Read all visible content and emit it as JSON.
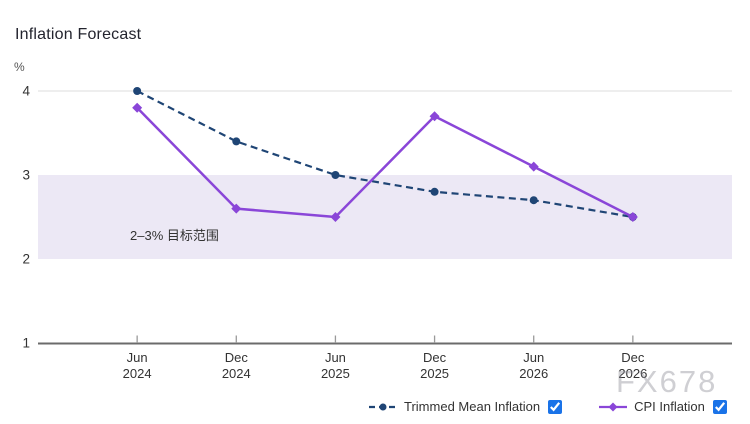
{
  "watermark": "FX678",
  "chart_data": {
    "type": "line",
    "title": "Inflation Forecast",
    "ylabel": "%",
    "xlabel": "",
    "ylim": [
      1,
      4.35
    ],
    "y_ticks": [
      4,
      3,
      2,
      1
    ],
    "categories": [
      {
        "month": "Jun",
        "year": "2024"
      },
      {
        "month": "Dec",
        "year": "2024"
      },
      {
        "month": "Jun",
        "year": "2025"
      },
      {
        "month": "Dec",
        "year": "2025"
      },
      {
        "month": "Jun",
        "year": "2026"
      },
      {
        "month": "Dec",
        "year": "2026"
      }
    ],
    "series": [
      {
        "name": "Trimmed Mean Inflation",
        "values": [
          4.0,
          3.4,
          3.0,
          2.8,
          2.7,
          2.5
        ],
        "color": "#1f4575",
        "line_style": "dashed",
        "marker": "circle",
        "checked": true
      },
      {
        "name": "CPI Inflation",
        "values": [
          3.8,
          2.6,
          2.5,
          3.7,
          3.1,
          2.5
        ],
        "color": "#8a46d8",
        "line_style": "solid",
        "marker": "diamond",
        "checked": true
      }
    ],
    "target_band": {
      "from": 2,
      "to": 3,
      "label": "2–3% 目标范围",
      "fill": "#ece8f5",
      "label_color": "#333333"
    },
    "grid": {
      "gridlines_at": [
        4
      ],
      "gridline_color": "#e4e4e4",
      "axis_color": "#6b6b6b",
      "tick_color": "#999999",
      "tick_label_color": "#333333"
    },
    "legend_position": "bottom"
  }
}
